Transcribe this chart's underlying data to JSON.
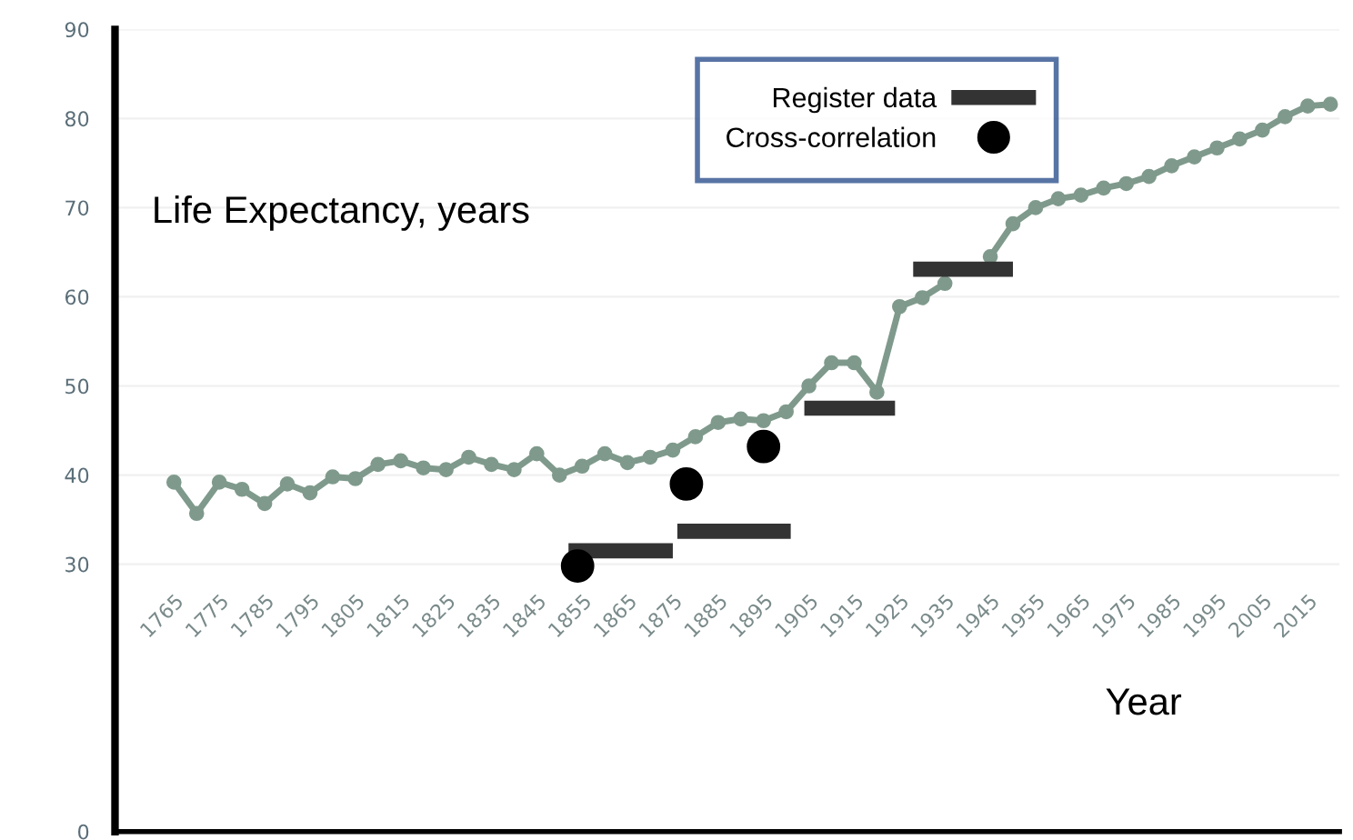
{
  "chart_data": {
    "type": "line",
    "title": "Life Expectancy, years",
    "xlabel": "Year",
    "xlim": [
      1752,
      2022
    ],
    "ylim": [
      0,
      90
    ],
    "xticks": [
      1765,
      1775,
      1785,
      1795,
      1805,
      1815,
      1825,
      1835,
      1845,
      1855,
      1865,
      1875,
      1885,
      1895,
      1905,
      1915,
      1925,
      1935,
      1945,
      1955,
      1965,
      1975,
      1985,
      1995,
      2005,
      2015
    ],
    "yticks": [
      0,
      30,
      40,
      50,
      60,
      70,
      80,
      90
    ],
    "grid": "y",
    "legend": "top right",
    "series": [
      {
        "color": "#7f9a8c",
        "marker": "circle",
        "x": [
          1765,
          1770,
          1775,
          1780,
          1785,
          1790,
          1795,
          1800,
          1805,
          1810,
          1815,
          1820,
          1825,
          1830,
          1835,
          1840,
          1845,
          1850,
          1855,
          1860,
          1865,
          1870,
          1875,
          1880,
          1885,
          1890,
          1895,
          1900,
          1905,
          1910,
          1915,
          1920,
          1925,
          1930,
          1935,
          1940,
          1945,
          1950,
          1955,
          1960,
          1965,
          1970,
          1975,
          1980,
          1985,
          1990,
          1995,
          2000,
          2005,
          2010,
          2015,
          2020
        ],
        "values": [
          39.2,
          35.7,
          39.2,
          38.4,
          36.8,
          39,
          38,
          39.8,
          39.6,
          41.2,
          41.6,
          40.8,
          40.6,
          42,
          41.2,
          40.6,
          42.4,
          40,
          41,
          42.4,
          41.4,
          42,
          42.8,
          44.3,
          45.9,
          46.3,
          46.1,
          47.1,
          50,
          52.6,
          52.6,
          49.3,
          58.9,
          59.9,
          61.5,
          null,
          64.5,
          68.2,
          70,
          71,
          71.4,
          72.2,
          72.7,
          73.5,
          74.7,
          75.7,
          76.7,
          77.7,
          78.7,
          80.2,
          81.4,
          81.6
        ]
      },
      {
        "type": "line",
        "name": "Register data",
        "color": "#333333",
        "marker": "none",
        "x": [
          1852,
          1875,
          null,
          1876,
          1901,
          null,
          1904,
          1924,
          null,
          1928,
          1950
        ],
        "values": [
          31.5,
          31.5,
          null,
          33.7,
          33.7,
          null,
          47.5,
          47.5,
          null,
          63.1,
          63.1
        ]
      },
      {
        "type": "scatter",
        "name": "Cross-correlation",
        "color": "#000000",
        "marker": "circle",
        "x": [
          1854,
          1878,
          1895
        ],
        "values": [
          29.8,
          39,
          43.2
        ]
      }
    ]
  }
}
